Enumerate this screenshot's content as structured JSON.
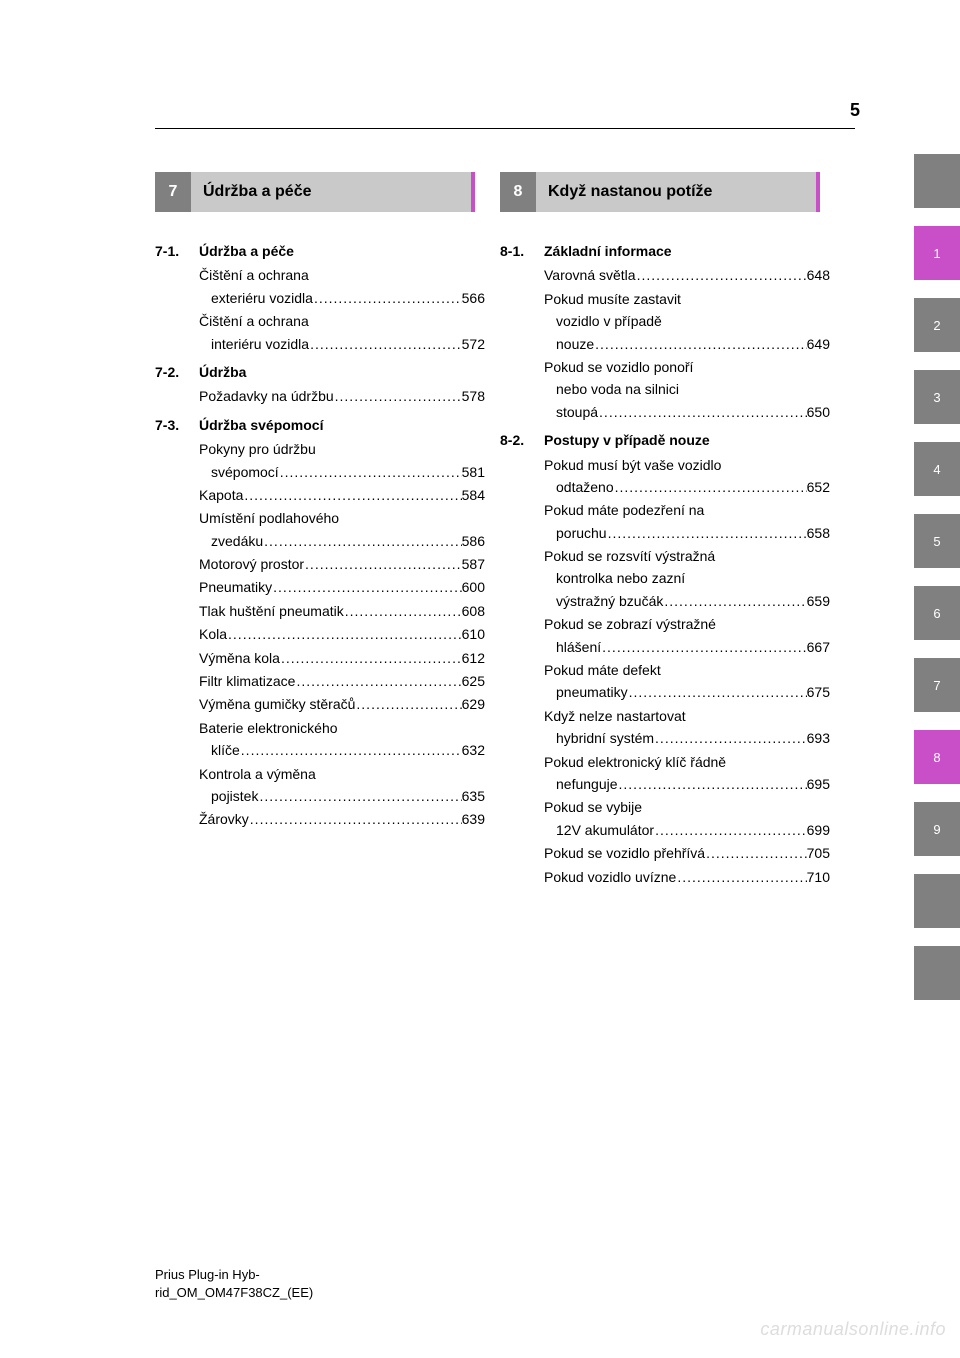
{
  "page_number": "5",
  "section7": {
    "num": "7",
    "title": "Údržba a péče",
    "subs": [
      {
        "num": "7-1.",
        "title": "Údržba a péče",
        "entries": [
          {
            "lines": [
              "Čištění a ochrana"
            ],
            "last": "exteriéru vozidla",
            "page": "566"
          },
          {
            "lines": [
              "Čištění a ochrana"
            ],
            "last": "interiéru vozidla",
            "page": "572"
          }
        ]
      },
      {
        "num": "7-2.",
        "title": "Údržba",
        "entries": [
          {
            "lines": [],
            "last": "Požadavky na údržbu",
            "page": "578"
          }
        ]
      },
      {
        "num": "7-3.",
        "title": "Údržba svépomocí",
        "entries": [
          {
            "lines": [
              "Pokyny pro údržbu"
            ],
            "last": "svépomocí",
            "page": "581"
          },
          {
            "lines": [],
            "last": "Kapota",
            "page": "584"
          },
          {
            "lines": [
              "Umístění podlahového"
            ],
            "last": "zvedáku",
            "page": "586"
          },
          {
            "lines": [],
            "last": "Motorový prostor",
            "page": "587"
          },
          {
            "lines": [],
            "last": "Pneumatiky",
            "page": "600"
          },
          {
            "lines": [],
            "last": "Tlak huštění pneumatik",
            "page": "608"
          },
          {
            "lines": [],
            "last": "Kola",
            "page": "610"
          },
          {
            "lines": [],
            "last": "Výměna kola",
            "page": "612"
          },
          {
            "lines": [],
            "last": "Filtr klimatizace",
            "page": "625"
          },
          {
            "lines": [],
            "last": "Výměna gumičky stěračů",
            "page": "629"
          },
          {
            "lines": [
              "Baterie elektronického"
            ],
            "last": "klíče",
            "page": "632"
          },
          {
            "lines": [
              "Kontrola a výměna"
            ],
            "last": "pojistek",
            "page": "635"
          },
          {
            "lines": [],
            "last": "Žárovky",
            "page": "639"
          }
        ]
      }
    ]
  },
  "section8": {
    "num": "8",
    "title": "Když nastanou potíže",
    "subs": [
      {
        "num": "8-1.",
        "title": "Základní informace",
        "entries": [
          {
            "lines": [],
            "last": "Varovná světla",
            "page": "648"
          },
          {
            "lines": [
              "Pokud musíte zastavit",
              "vozidlo v případě"
            ],
            "last": "nouze",
            "page": "649"
          },
          {
            "lines": [
              "Pokud se vozidlo ponoří",
              "nebo voda na silnici"
            ],
            "last": "stoupá",
            "page": "650"
          }
        ]
      },
      {
        "num": "8-2.",
        "title": "Postupy v případě nouze",
        "entries": [
          {
            "lines": [
              "Pokud musí být vaše vozidlo"
            ],
            "last": "odtaženo",
            "page": "652"
          },
          {
            "lines": [
              "Pokud máte podezření na"
            ],
            "last": "poruchu",
            "page": "658"
          },
          {
            "lines": [
              "Pokud se rozsvítí výstražná",
              "kontrolka nebo zazní"
            ],
            "last": "výstražný bzučák",
            "page": "659"
          },
          {
            "lines": [
              "Pokud se zobrazí výstražné"
            ],
            "last": "hlášení",
            "page": "667"
          },
          {
            "lines": [
              "Pokud máte defekt"
            ],
            "last": "pneumatiky",
            "page": "675"
          },
          {
            "lines": [
              "Když nelze nastartovat"
            ],
            "last": "hybridní systém",
            "page": "693"
          },
          {
            "lines": [
              "Pokud elektronický klíč řádně"
            ],
            "last": "nefunguje",
            "page": "695"
          },
          {
            "lines": [
              "Pokud se vybije"
            ],
            "last": "12V akumulátor",
            "page": "699"
          },
          {
            "lines": [],
            "last": "Pokud se vozidlo přehřívá",
            "page": "705"
          },
          {
            "lines": [],
            "last": "Pokud vozidlo uvízne",
            "page": "710"
          }
        ]
      }
    ]
  },
  "tabs": [
    {
      "label": "",
      "color": "gray"
    },
    {
      "label": "1",
      "color": "magenta"
    },
    {
      "label": "2",
      "color": "gray"
    },
    {
      "label": "3",
      "color": "gray"
    },
    {
      "label": "4",
      "color": "gray"
    },
    {
      "label": "5",
      "color": "gray"
    },
    {
      "label": "6",
      "color": "gray"
    },
    {
      "label": "7",
      "color": "gray"
    },
    {
      "label": "8",
      "color": "magenta"
    },
    {
      "label": "9",
      "color": "gray"
    },
    {
      "label": "",
      "color": "gray"
    },
    {
      "label": "",
      "color": "gray"
    }
  ],
  "footer": {
    "line1": "Prius               Plug-in               Hyb-",
    "line2": "rid_OM_OM47F38CZ_(EE)"
  },
  "watermark": "carmanualsonline.info"
}
